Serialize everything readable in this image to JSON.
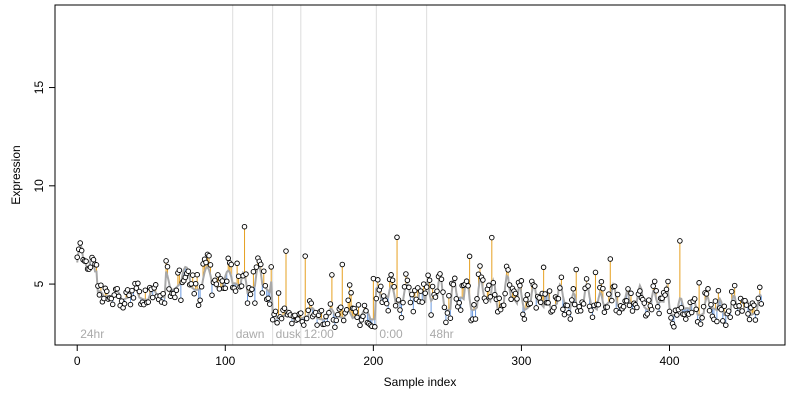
{
  "chart_data": {
    "type": "scatter",
    "title": "",
    "xlabel": "Sample index",
    "ylabel": "Expression",
    "xlim": [
      -15,
      478
    ],
    "ylim": [
      1.9,
      19.2
    ],
    "xticks": [
      0,
      100,
      200,
      300,
      400
    ],
    "yticks": [
      5,
      10,
      15
    ],
    "grid": false,
    "colors": {
      "up_segment": "#e6a020",
      "down_segment": "#6a9ae0",
      "fit_line": "#a8a8a8",
      "points_stroke": "#000000",
      "phase_line": "#dddddd",
      "phase_label": "#aaaaaa"
    },
    "phase_markers": [
      {
        "x": 0,
        "label": "24hr"
      },
      {
        "x": 105,
        "label": "dawn"
      },
      {
        "x": 132,
        "label": "dusk"
      },
      {
        "x": 151,
        "label": "12:00"
      },
      {
        "x": 202,
        "label": "0:00"
      },
      {
        "x": 236,
        "label": "48hr"
      }
    ],
    "regions": [
      {
        "start": 0,
        "end": 6,
        "base": 6.1,
        "amp": 1.0,
        "period": 8,
        "noise": 0.3
      },
      {
        "start": 6,
        "end": 14,
        "base": 5.8,
        "amp": 0.8,
        "period": 8,
        "noise": 0.4
      },
      {
        "start": 14,
        "end": 60,
        "base": 4.3,
        "amp": 0.5,
        "period": 12,
        "noise": 0.5
      },
      {
        "start": 60,
        "end": 105,
        "base": 4.9,
        "amp": 1.0,
        "period": 14,
        "noise": 0.9
      },
      {
        "start": 105,
        "end": 132,
        "base": 4.8,
        "amp": 1.2,
        "period": 10,
        "noise": 0.9
      },
      {
        "start": 132,
        "end": 151,
        "base": 3.3,
        "amp": 0.4,
        "period": 10,
        "noise": 0.4
      },
      {
        "start": 151,
        "end": 202,
        "base": 3.3,
        "amp": 0.5,
        "period": 12,
        "noise": 0.6
      },
      {
        "start": 202,
        "end": 236,
        "base": 4.2,
        "amp": 0.9,
        "period": 10,
        "noise": 0.8
      },
      {
        "start": 236,
        "end": 300,
        "base": 4.0,
        "amp": 1.6,
        "period": 9,
        "noise": 0.8
      },
      {
        "start": 300,
        "end": 400,
        "base": 3.9,
        "amp": 1.1,
        "period": 9,
        "noise": 0.7
      },
      {
        "start": 400,
        "end": 463,
        "base": 3.6,
        "amp": 0.9,
        "period": 9,
        "noise": 0.6
      }
    ],
    "point_count": 463
  }
}
